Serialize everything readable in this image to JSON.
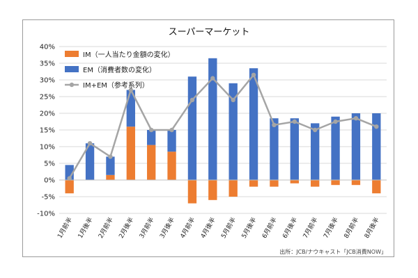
{
  "chart_data": {
    "type": "bar",
    "title": "スーパーマーケット",
    "categories": [
      "1月前半",
      "1月後半",
      "2月前半",
      "2月後半",
      "3月前半",
      "3月後半",
      "4月前半",
      "4月後半",
      "5月前半",
      "5月後半",
      "6月前半",
      "6月後半",
      "7月前半",
      "7月後半",
      "8月前半",
      "8月後半"
    ],
    "series": [
      {
        "name": "IM（一人当たり金額の変化）",
        "kind": "stacked-bar",
        "color": "#ED7D31",
        "values": [
          -4.0,
          0,
          1.5,
          16.0,
          10.5,
          8.5,
          -7.0,
          -6.0,
          -5.0,
          -2.0,
          -2.0,
          -1.0,
          -2.0,
          -1.5,
          -1.5,
          -4.0
        ]
      },
      {
        "name": "EM（消費者数の変化）",
        "kind": "stacked-bar",
        "color": "#4472C4",
        "values": [
          4.5,
          11.0,
          5.5,
          11.0,
          4.5,
          6.5,
          31.0,
          36.5,
          29.0,
          33.5,
          18.5,
          18.5,
          17.0,
          19.0,
          20.0,
          20.0
        ]
      },
      {
        "name": "IM+EM（参考系列）",
        "kind": "line",
        "color": "#A5A5A5",
        "values": [
          0.5,
          11.0,
          7.0,
          27.0,
          15.0,
          15.0,
          24.0,
          30.5,
          24.0,
          31.5,
          16.5,
          17.5,
          15.0,
          17.5,
          18.5,
          16.0
        ]
      }
    ],
    "ylim": [
      -10,
      40
    ],
    "yticks": [
      -10,
      -5,
      0,
      5,
      10,
      15,
      20,
      25,
      30,
      35,
      40
    ],
    "ytick_labels": [
      "-10%",
      "-5%",
      "0%",
      "5%",
      "10%",
      "15%",
      "20%",
      "25%",
      "30%",
      "35%",
      "40%"
    ],
    "grid": true,
    "legend_position": "top-left",
    "source": "出所：JCB/ナウキャスト「JCB消費NOW」"
  }
}
